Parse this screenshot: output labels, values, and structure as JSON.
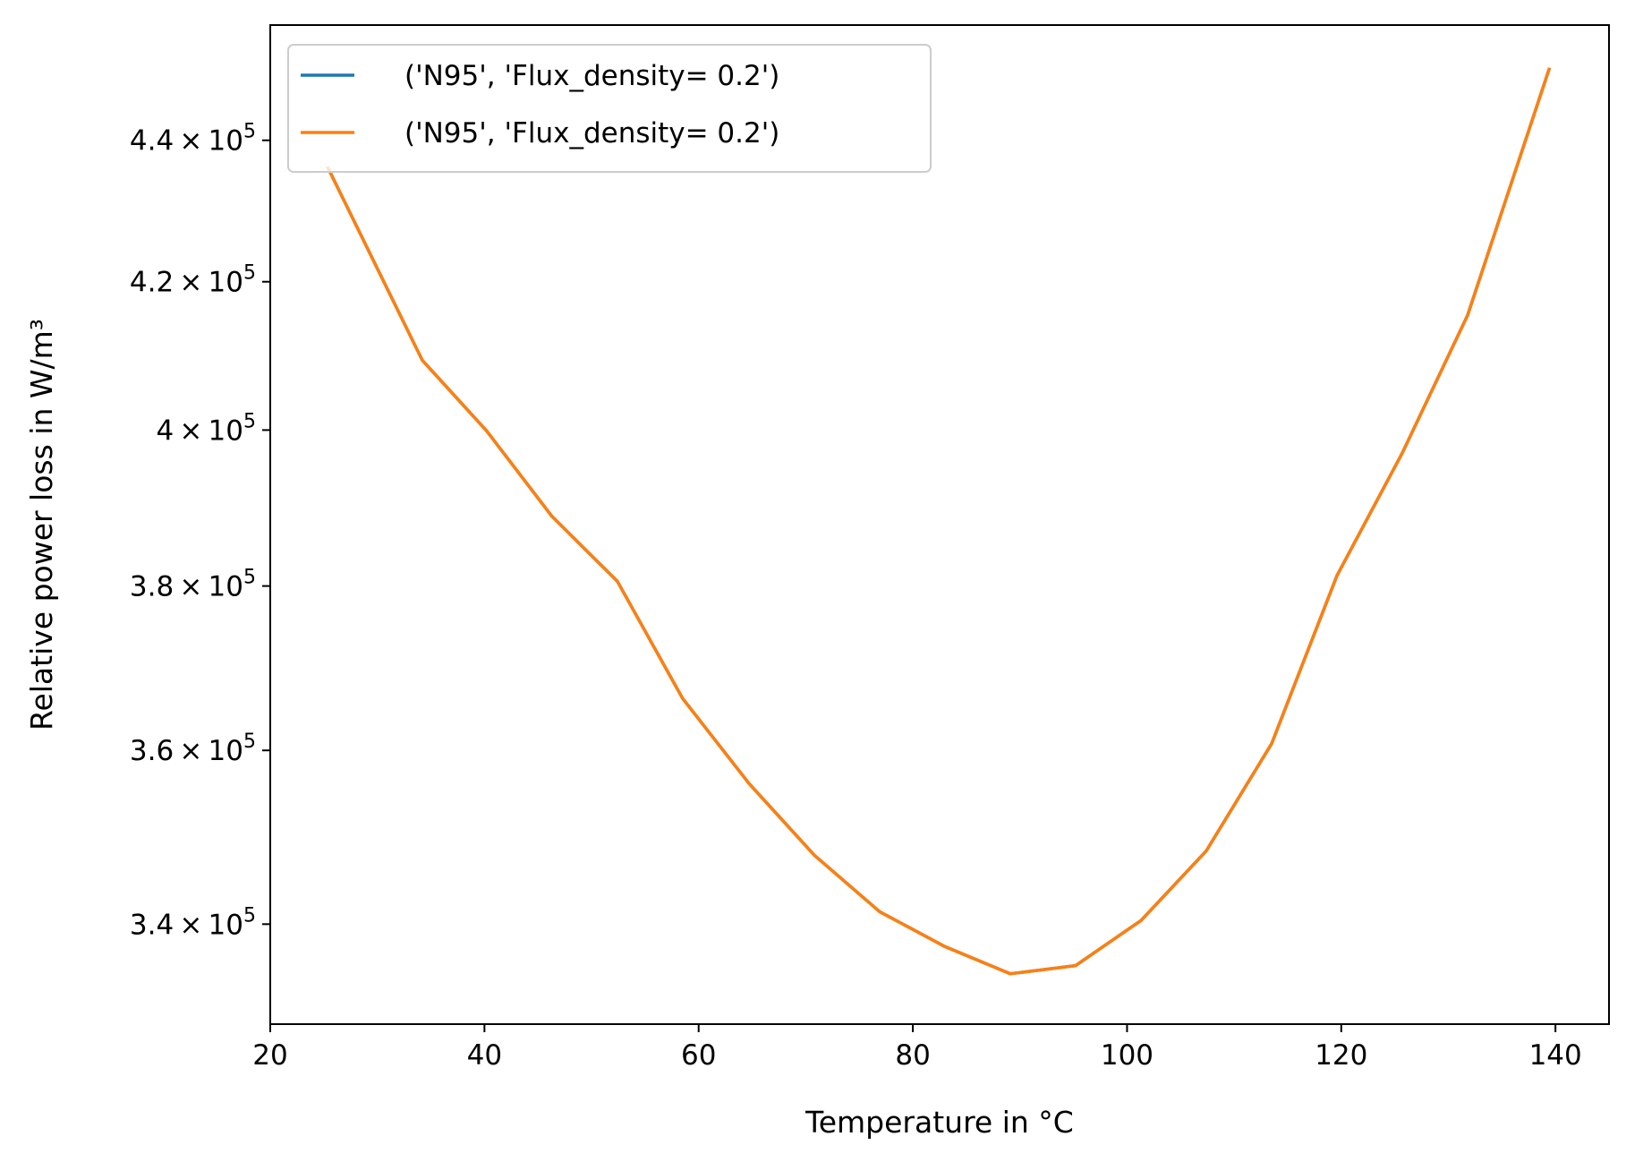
{
  "chart_data": {
    "type": "line",
    "xlabel": "Temperature in °C",
    "ylabel": "Relative power loss in W/m³",
    "yscale": "log",
    "xlim": [
      20,
      145
    ],
    "ylim": [
      329000,
      457000
    ],
    "grid": false,
    "legend_position": "top-left",
    "x_ticks": [
      {
        "value": 20,
        "label": "20"
      },
      {
        "value": 40,
        "label": "40"
      },
      {
        "value": 60,
        "label": "60"
      },
      {
        "value": 80,
        "label": "80"
      },
      {
        "value": 100,
        "label": "100"
      },
      {
        "value": 120,
        "label": "120"
      },
      {
        "value": 140,
        "label": "140"
      }
    ],
    "y_ticks": [
      {
        "value": 340000,
        "mantissa": "3.4",
        "base": "10",
        "exponent": "5"
      },
      {
        "value": 360000,
        "mantissa": "3.6",
        "base": "10",
        "exponent": "5"
      },
      {
        "value": 380000,
        "mantissa": "3.8",
        "base": "10",
        "exponent": "5"
      },
      {
        "value": 400000,
        "mantissa": "4",
        "base": "10",
        "exponent": "5"
      },
      {
        "value": 420000,
        "mantissa": "4.2",
        "base": "10",
        "exponent": "5"
      },
      {
        "value": 440000,
        "mantissa": "4.4",
        "base": "10",
        "exponent": "5"
      }
    ],
    "times_symbol": "×",
    "series": [
      {
        "name": "('N95', 'Flux_density= 0.2')",
        "color": "#1f77b4",
        "x": [
          25.4,
          34.2,
          40.2,
          46.3,
          52.4,
          58.5,
          64.7,
          70.8,
          76.9,
          83.0,
          89.1,
          95.2,
          101.3,
          107.4,
          113.5,
          119.6,
          125.7,
          131.8,
          139.4
        ],
        "y": [
          436000,
          409300,
          399900,
          388800,
          380600,
          366200,
          356100,
          347800,
          341400,
          337500,
          334500,
          335400,
          340400,
          348300,
          360800,
          381300,
          397000,
          415400,
          450400
        ]
      },
      {
        "name": "('N95', 'Flux_density= 0.2')",
        "color": "#ff7f0e",
        "x": [
          25.4,
          34.2,
          40.2,
          46.3,
          52.4,
          58.5,
          64.7,
          70.8,
          76.9,
          83.0,
          89.1,
          95.2,
          101.3,
          107.4,
          113.5,
          119.6,
          125.7,
          131.8,
          139.4
        ],
        "y": [
          436000,
          409300,
          399900,
          388800,
          380600,
          366200,
          356100,
          347800,
          341400,
          337500,
          334500,
          335400,
          340400,
          348300,
          360800,
          381300,
          397000,
          415400,
          450400
        ]
      }
    ]
  }
}
